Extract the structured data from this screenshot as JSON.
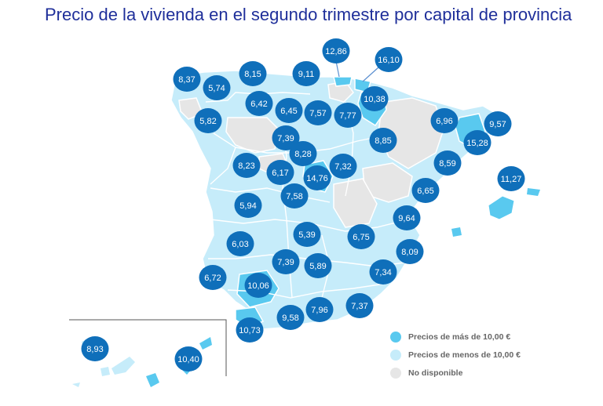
{
  "title": "Precio de la vivienda en el segundo trimestre por capital de provincia",
  "colors": {
    "high": "#59c9ef",
    "low": "#c6ecfa",
    "na": "#e6e6e6",
    "bubble": "#0f6fba",
    "title": "#1f2f9a",
    "border": "#ffffff"
  },
  "legend": [
    {
      "label": "Precios de más de 10,00 €",
      "color": "#59c9ef"
    },
    {
      "label": "Precios de menos de 10,00 €",
      "color": "#c6ecfa"
    },
    {
      "label": "No disponible",
      "color": "#e6e6e6"
    }
  ],
  "markers": [
    {
      "value": "8,37"
    },
    {
      "value": "5,74"
    },
    {
      "value": "8,15"
    },
    {
      "value": "9,11"
    },
    {
      "value": "12,86"
    },
    {
      "value": "16,10"
    },
    {
      "value": "6,42"
    },
    {
      "value": "10,38"
    },
    {
      "value": "5,82"
    },
    {
      "value": "6,45"
    },
    {
      "value": "7,57"
    },
    {
      "value": "7,77"
    },
    {
      "value": "6,96"
    },
    {
      "value": "9,57"
    },
    {
      "value": "15,28"
    },
    {
      "value": "7,39"
    },
    {
      "value": "8,85"
    },
    {
      "value": "8,28"
    },
    {
      "value": "8,59"
    },
    {
      "value": "8,23"
    },
    {
      "value": "6,17"
    },
    {
      "value": "7,32"
    },
    {
      "value": "14,76"
    },
    {
      "value": "11,27"
    },
    {
      "value": "6,65"
    },
    {
      "value": "7,58"
    },
    {
      "value": "5,94"
    },
    {
      "value": "9,64"
    },
    {
      "value": "5,39"
    },
    {
      "value": "6,75"
    },
    {
      "value": "6,03"
    },
    {
      "value": "8,09"
    },
    {
      "value": "7,39"
    },
    {
      "value": "5,89"
    },
    {
      "value": "7,34"
    },
    {
      "value": "6,72"
    },
    {
      "value": "10,06"
    },
    {
      "value": "7,37"
    },
    {
      "value": "7,96"
    },
    {
      "value": "9,58"
    },
    {
      "value": "10,73"
    },
    {
      "value": "8,93"
    },
    {
      "value": "10,40"
    }
  ]
}
